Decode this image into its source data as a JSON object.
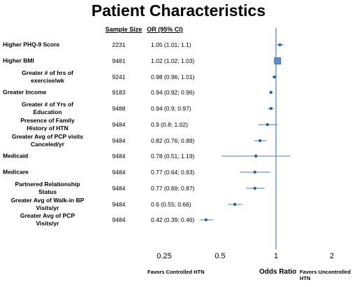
{
  "chart_data": {
    "type": "forest",
    "title": "Patient Characteristics",
    "columns": {
      "size": "Sample Size",
      "or": "OR (95% CI)"
    },
    "rows": [
      {
        "label": "Higher PHQ-9 Score",
        "size": "2231",
        "or_text": "1.05 (1.01; 1.1)",
        "or": 1.05,
        "lo": 1.01,
        "hi": 1.1
      },
      {
        "label": "Higher BMI",
        "size": "9481",
        "or_text": "1.02 (1.02; 1.03)",
        "or": 1.02,
        "lo": 1.02,
        "hi": 1.03
      },
      {
        "label": "Greater # of hrs of\nexercise/wk",
        "size": "9241",
        "or_text": "0.98 (0.96; 1.01)",
        "or": 0.98,
        "lo": 0.96,
        "hi": 1.01
      },
      {
        "label": "Greater Income",
        "size": "9183",
        "or_text": "0.94 (0.92; 0.96)",
        "or": 0.94,
        "lo": 0.92,
        "hi": 0.96
      },
      {
        "label": "Greater # of Yrs of\nEducation",
        "size": "9488",
        "or_text": "0.94 (0.9; 0.97)",
        "or": 0.94,
        "lo": 0.9,
        "hi": 0.97
      },
      {
        "label": "Presence of Family\nHistory of HTN",
        "size": "9484",
        "or_text": "0.9 (0.8; 1.02)",
        "or": 0.9,
        "lo": 0.8,
        "hi": 1.02
      },
      {
        "label": "Greater Avg of PCP visits\nCanceled/yr",
        "size": "9484",
        "or_text": "0.82 (0.76; 0.89)",
        "or": 0.82,
        "lo": 0.76,
        "hi": 0.89
      },
      {
        "label": "Medicaid",
        "size": "9484",
        "or_text": "0.78 (0.51; 1.19)",
        "or": 0.78,
        "lo": 0.51,
        "hi": 1.19
      },
      {
        "label": "Medicare",
        "size": "9484",
        "or_text": "0.77 (0.64; 0.93)",
        "or": 0.77,
        "lo": 0.64,
        "hi": 0.93
      },
      {
        "label": "Partnered Relationship\nStatus",
        "size": "9484",
        "or_text": "0.77 (0.69; 0.87)",
        "or": 0.77,
        "lo": 0.69,
        "hi": 0.87
      },
      {
        "label": "Greater Avg of Walk-in BP\nVisits/yr",
        "size": "9484",
        "or_text": "0.6 (0.55; 0.66)",
        "or": 0.6,
        "lo": 0.55,
        "hi": 0.66
      },
      {
        "label": "Greater Avg of PCP\nVisits/yr",
        "size": "9484",
        "or_text": "0.42 (0.39; 0.46)",
        "or": 0.42,
        "lo": 0.39,
        "hi": 0.46
      }
    ],
    "x_scale": "log",
    "x_ticks": [
      0.25,
      0.5,
      1,
      2
    ],
    "x_tick_labels": [
      "0.25",
      "0.5",
      "1",
      "2"
    ],
    "reference_line": 1,
    "xlabel": "Odds Ratio",
    "favors_left": "Favors Controlled HTN",
    "favors_right": "Favors Uncontrolled HTN",
    "colors": {
      "marker": "#2e5fa3",
      "box_fill": "#5b8fd0",
      "line": "#4a7cc4"
    }
  }
}
